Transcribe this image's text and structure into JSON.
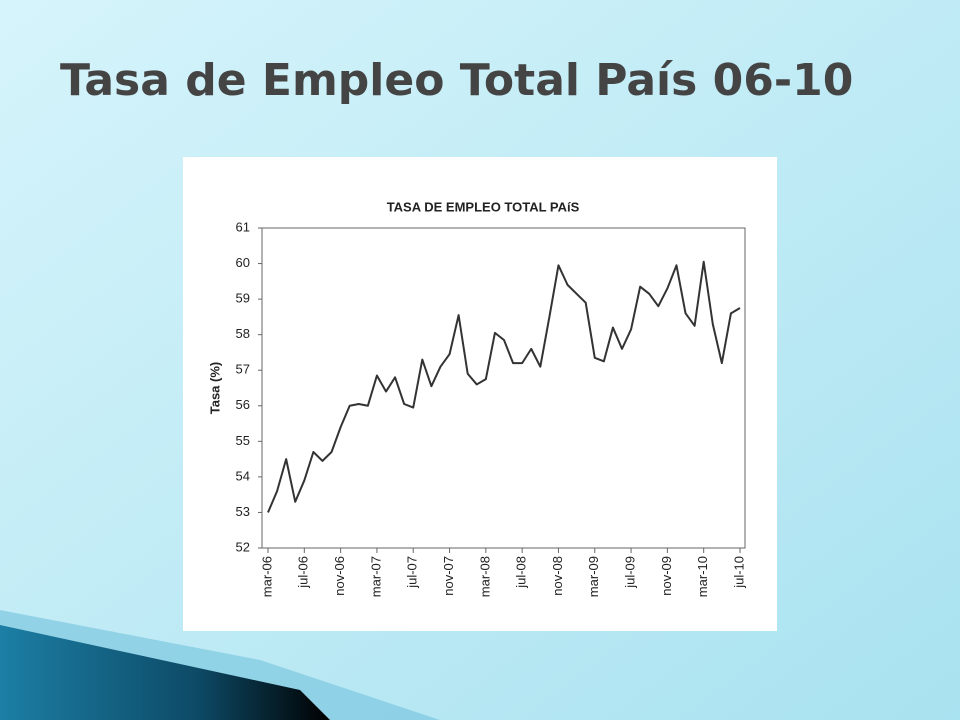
{
  "slide": {
    "title": "Tasa de Empleo Total País 06-10"
  },
  "chart_data": {
    "type": "line",
    "title": "TASA DE EMPLEO TOTAL PAíS",
    "y_label": "Tasa (%)",
    "categories": [
      "mar-06",
      null,
      null,
      null,
      "jul-06",
      null,
      null,
      null,
      "nov-06",
      null,
      null,
      null,
      "mar-07",
      null,
      null,
      null,
      "jul-07",
      null,
      null,
      null,
      "nov-07",
      null,
      null,
      null,
      "mar-08",
      null,
      null,
      null,
      "jul-08",
      null,
      null,
      null,
      "nov-08",
      null,
      null,
      null,
      "mar-09",
      null,
      null,
      null,
      "jul-09",
      null,
      null,
      null,
      "nov-09",
      null,
      null,
      null,
      "mar-10",
      null,
      null,
      null,
      "jul-10"
    ],
    "series": [
      {
        "name": "Tasa",
        "color": "#333333",
        "values": [
          53.0,
          53.6,
          54.5,
          53.3,
          53.9,
          54.7,
          54.45,
          54.7,
          55.4,
          56.0,
          56.05,
          56.0,
          56.85,
          56.4,
          56.8,
          56.05,
          55.95,
          57.3,
          56.55,
          57.1,
          57.45,
          58.55,
          56.9,
          56.6,
          56.75,
          58.05,
          57.85,
          57.2,
          57.2,
          57.6,
          57.1,
          58.5,
          59.95,
          59.4,
          59.15,
          58.9,
          57.35,
          57.25,
          58.2,
          57.6,
          58.15,
          59.35,
          59.15,
          58.8,
          59.3,
          59.95,
          58.6,
          58.25,
          60.05,
          58.3,
          57.2,
          58.6,
          58.75
        ]
      }
    ],
    "ylim": [
      52,
      61
    ],
    "yticks": [
      52,
      53,
      54,
      55,
      56,
      57,
      58,
      59,
      60,
      61
    ],
    "grid": false
  }
}
